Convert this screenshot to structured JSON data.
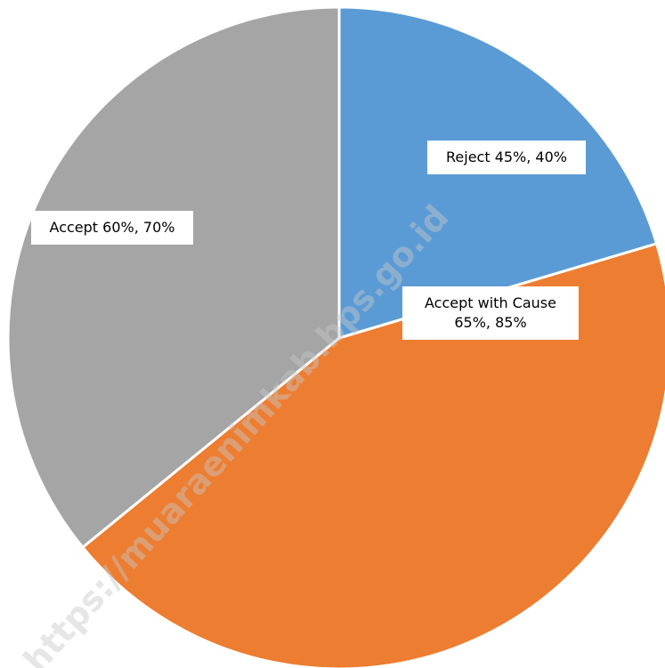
{
  "chart_data": {
    "type": "pie",
    "categories": [
      "Reject 45%, 40%",
      "Accept with Cause 65%, 85%",
      "Accept 60%, 70%"
    ],
    "values": [
      20.4,
      43.7,
      35.9
    ],
    "colors": [
      "#5b9bd5",
      "#ed7d31",
      "#a5a5a5"
    ],
    "watermark": "https://muaraenimkab.bps.go.id"
  }
}
